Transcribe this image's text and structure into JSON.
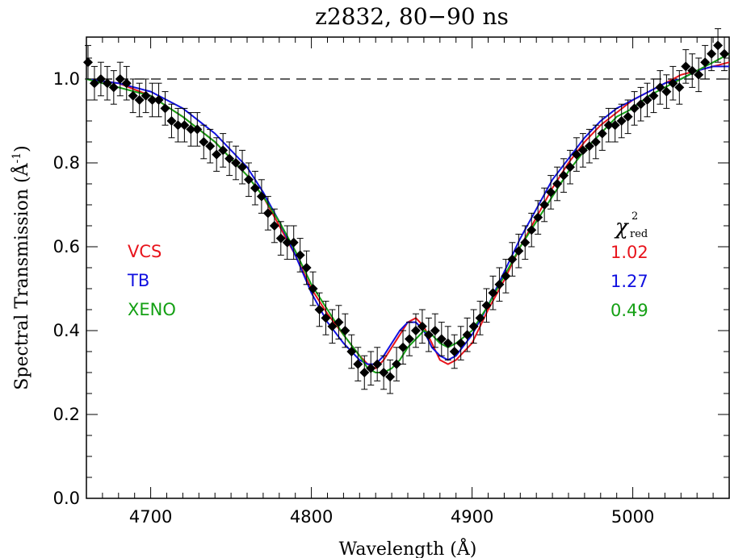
{
  "chart_data": {
    "type": "scatter",
    "title": "z2832, 80−90 ns",
    "xlabel": "Wavelength (Å)",
    "ylabel_prefix": "Spectral Transmission (",
    "ylabel_unit": "Å",
    "ylabel_exp": "-1",
    "ylabel_suffix": ")",
    "xlim": [
      4660,
      5060
    ],
    "ylim": [
      0.0,
      1.1
    ],
    "xticks": [
      4700,
      4800,
      4900,
      5000
    ],
    "xtick_labels": [
      "4700",
      "4800",
      "4900",
      "5000"
    ],
    "yticks": [
      0.0,
      0.2,
      0.4,
      0.6,
      0.8,
      1.0
    ],
    "ytick_labels": [
      "0.0",
      "0.2",
      "0.4",
      "0.6",
      "0.8",
      "1.0"
    ],
    "reference_line": {
      "y": 1.0,
      "style": "dashed"
    },
    "legend": [
      {
        "name": "VCS",
        "color": "#e8141c",
        "chi2": "1.02"
      },
      {
        "name": "TB",
        "color": "#1010e0",
        "chi2": "1.27"
      },
      {
        "name": "XENO",
        "color": "#14a014",
        "chi2": "0.49"
      }
    ],
    "chi2_label": "χ",
    "chi2_sup": "2",
    "chi2_sub": "red",
    "data": {
      "x": [
        4661,
        4665,
        4669,
        4673,
        4677,
        4681,
        4685,
        4689,
        4693,
        4697,
        4701,
        4705,
        4709,
        4713,
        4717,
        4721,
        4725,
        4729,
        4733,
        4737,
        4741,
        4745,
        4749,
        4753,
        4757,
        4761,
        4765,
        4769,
        4773,
        4777,
        4781,
        4785,
        4789,
        4793,
        4797,
        4801,
        4805,
        4809,
        4813,
        4817,
        4821,
        4825,
        4829,
        4833,
        4837,
        4841,
        4845,
        4849,
        4853,
        4857,
        4861,
        4865,
        4869,
        4873,
        4877,
        4881,
        4885,
        4889,
        4893,
        4897,
        4901,
        4905,
        4909,
        4913,
        4917,
        4921,
        4925,
        4929,
        4933,
        4937,
        4941,
        4945,
        4949,
        4953,
        4957,
        4961,
        4965,
        4969,
        4973,
        4977,
        4981,
        4985,
        4989,
        4993,
        4997,
        5001,
        5005,
        5009,
        5013,
        5017,
        5021,
        5025,
        5029,
        5033,
        5037,
        5041,
        5045,
        5049,
        5053,
        5057
      ],
      "y": [
        1.04,
        0.99,
        1.0,
        0.99,
        0.98,
        1.0,
        0.99,
        0.96,
        0.95,
        0.96,
        0.95,
        0.95,
        0.93,
        0.9,
        0.89,
        0.89,
        0.88,
        0.88,
        0.85,
        0.84,
        0.82,
        0.83,
        0.81,
        0.8,
        0.79,
        0.76,
        0.74,
        0.72,
        0.68,
        0.65,
        0.62,
        0.61,
        0.61,
        0.58,
        0.55,
        0.5,
        0.45,
        0.43,
        0.41,
        0.42,
        0.4,
        0.35,
        0.32,
        0.3,
        0.31,
        0.32,
        0.3,
        0.29,
        0.32,
        0.36,
        0.38,
        0.4,
        0.41,
        0.39,
        0.4,
        0.38,
        0.37,
        0.35,
        0.37,
        0.39,
        0.41,
        0.43,
        0.46,
        0.49,
        0.51,
        0.53,
        0.57,
        0.59,
        0.61,
        0.64,
        0.67,
        0.7,
        0.73,
        0.75,
        0.77,
        0.79,
        0.82,
        0.83,
        0.84,
        0.85,
        0.87,
        0.89,
        0.89,
        0.9,
        0.91,
        0.93,
        0.94,
        0.95,
        0.96,
        0.98,
        0.97,
        0.99,
        0.98,
        1.03,
        1.02,
        1.01,
        1.04,
        1.06,
        1.08,
        1.06
      ],
      "error": 0.04
    },
    "series": [
      {
        "name": "VCS",
        "color": "#e8141c",
        "x": [
          4660,
          4680,
          4700,
          4720,
          4740,
          4760,
          4770,
          4780,
          4790,
          4800,
          4810,
          4820,
          4830,
          4835,
          4840,
          4845,
          4850,
          4855,
          4860,
          4865,
          4870,
          4875,
          4880,
          4885,
          4890,
          4900,
          4910,
          4920,
          4930,
          4940,
          4950,
          4960,
          4970,
          4980,
          4990,
          5000,
          5010,
          5020,
          5030,
          5040,
          5050,
          5060
        ],
        "y": [
          1.0,
          0.99,
          0.96,
          0.91,
          0.85,
          0.77,
          0.72,
          0.65,
          0.58,
          0.5,
          0.44,
          0.39,
          0.34,
          0.32,
          0.31,
          0.33,
          0.36,
          0.39,
          0.42,
          0.43,
          0.41,
          0.37,
          0.33,
          0.32,
          0.33,
          0.37,
          0.45,
          0.52,
          0.6,
          0.67,
          0.74,
          0.8,
          0.85,
          0.89,
          0.92,
          0.95,
          0.97,
          0.99,
          1.01,
          1.02,
          1.03,
          1.04
        ]
      },
      {
        "name": "TB",
        "color": "#1010e0",
        "x": [
          4660,
          4680,
          4700,
          4720,
          4740,
          4760,
          4770,
          4780,
          4790,
          4800,
          4810,
          4820,
          4830,
          4835,
          4840,
          4845,
          4850,
          4855,
          4860,
          4865,
          4870,
          4875,
          4880,
          4885,
          4890,
          4900,
          4910,
          4920,
          4930,
          4940,
          4950,
          4960,
          4970,
          4980,
          4990,
          5000,
          5010,
          5020,
          5030,
          5040,
          5050,
          5060
        ],
        "y": [
          1.0,
          0.99,
          0.97,
          0.93,
          0.87,
          0.79,
          0.73,
          0.66,
          0.58,
          0.49,
          0.42,
          0.37,
          0.33,
          0.32,
          0.32,
          0.34,
          0.37,
          0.4,
          0.42,
          0.42,
          0.4,
          0.36,
          0.34,
          0.33,
          0.34,
          0.39,
          0.46,
          0.54,
          0.62,
          0.69,
          0.76,
          0.81,
          0.86,
          0.9,
          0.93,
          0.95,
          0.97,
          0.99,
          1.0,
          1.02,
          1.03,
          1.03
        ]
      },
      {
        "name": "XENO",
        "color": "#14a014",
        "x": [
          4660,
          4680,
          4700,
          4720,
          4740,
          4760,
          4770,
          4780,
          4790,
          4800,
          4810,
          4820,
          4830,
          4835,
          4840,
          4845,
          4850,
          4855,
          4860,
          4865,
          4870,
          4875,
          4880,
          4885,
          4890,
          4900,
          4910,
          4920,
          4930,
          4940,
          4950,
          4960,
          4970,
          4980,
          4990,
          5000,
          5010,
          5020,
          5030,
          5040,
          5050,
          5060
        ],
        "y": [
          1.0,
          0.98,
          0.96,
          0.91,
          0.85,
          0.77,
          0.72,
          0.66,
          0.59,
          0.51,
          0.45,
          0.39,
          0.34,
          0.31,
          0.3,
          0.3,
          0.31,
          0.33,
          0.36,
          0.38,
          0.4,
          0.39,
          0.37,
          0.36,
          0.37,
          0.4,
          0.46,
          0.53,
          0.6,
          0.66,
          0.72,
          0.78,
          0.83,
          0.87,
          0.91,
          0.93,
          0.96,
          0.98,
          1.0,
          1.02,
          1.04,
          1.06
        ]
      }
    ]
  }
}
